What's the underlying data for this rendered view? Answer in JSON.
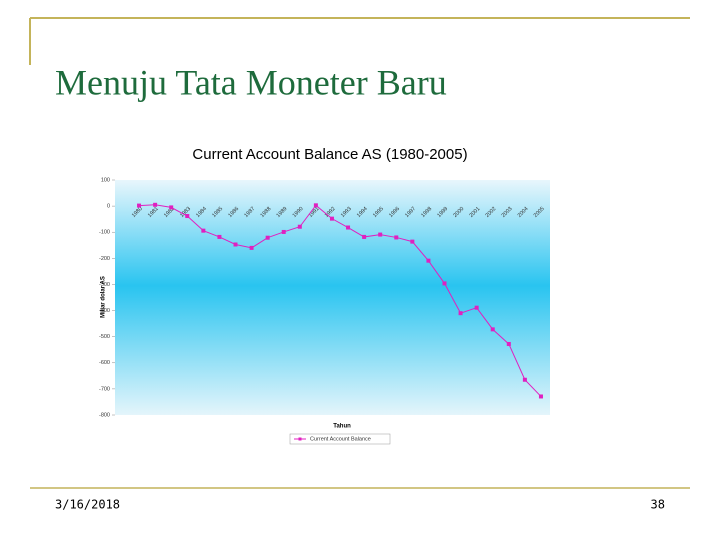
{
  "slide": {
    "title": "Menuju Tata Moneter Baru",
    "date": "3/16/2018",
    "page": "38"
  },
  "chart_data": {
    "type": "line",
    "title": "Current Account Balance AS (1980-2005)",
    "x_label": "Tahun",
    "y_label": "Miliar dolar AS",
    "categories": [
      "1980",
      "1981",
      "1982",
      "1983",
      "1984",
      "1985",
      "1986",
      "1987",
      "1988",
      "1989",
      "1990",
      "1991",
      "1992",
      "1993",
      "1994",
      "1995",
      "1996",
      "1997",
      "1998",
      "1999",
      "2000",
      "2001",
      "2002",
      "2003",
      "2004",
      "2005"
    ],
    "series": [
      {
        "name": "Current Account Balance",
        "color": "#e020c0",
        "values": [
          2,
          5,
          -5,
          -38,
          -94,
          -118,
          -147,
          -160,
          -121,
          -99,
          -79,
          3,
          -48,
          -82,
          -118,
          -109,
          -120,
          -136,
          -209,
          -296,
          -410,
          -389,
          -472,
          -528,
          -665,
          -729
        ]
      }
    ],
    "ylim": [
      -800,
      100
    ],
    "yticks": [
      100,
      0,
      -100,
      -200,
      -300,
      -400,
      -500,
      -600,
      -700,
      -800
    ],
    "legend": "bottom"
  }
}
